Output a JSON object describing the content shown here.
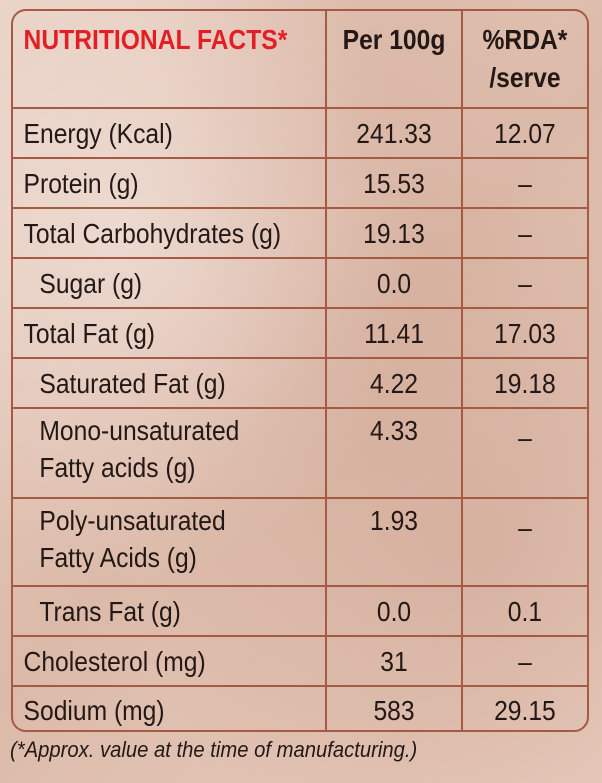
{
  "header": {
    "title": "NUTRITIONAL FACTS*",
    "per100": "Per 100g",
    "rda_line1": "%RDA*",
    "rda_line2": "/serve"
  },
  "rows": [
    {
      "label": "Energy (Kcal)",
      "per100": "241.33",
      "rda": "12.07"
    },
    {
      "label": "Protein (g)",
      "per100": "15.53",
      "rda": "–"
    },
    {
      "label": "Total Carbohydrates (g)",
      "per100": "19.13",
      "rda": "–"
    },
    {
      "label": "Sugar (g)",
      "per100": "0.0",
      "rda": "–"
    },
    {
      "label": "Total Fat (g)",
      "per100": "11.41",
      "rda": "17.03"
    },
    {
      "label": "Saturated Fat (g)",
      "per100": "4.22",
      "rda": "19.18"
    },
    {
      "label_line1": "Mono-unsaturated",
      "label_line2": "Fatty acids (g)",
      "per100": "4.33",
      "rda": "–"
    },
    {
      "label_line1": "Poly-unsaturated",
      "label_line2": "Fatty Acids (g)",
      "per100": "1.93",
      "rda": "–"
    },
    {
      "label": "Trans Fat (g)",
      "per100": "0.0",
      "rda": "0.1"
    },
    {
      "label": "Cholesterol (mg)",
      "per100": "31",
      "rda": "–"
    },
    {
      "label": "Sodium (mg)",
      "per100": "583",
      "rda": "29.15"
    }
  ],
  "footnote": "(*Approx. value at the time of manufacturing.)",
  "colors": {
    "title": "#e31e24",
    "border": "#a65a44",
    "text": "#231815"
  }
}
